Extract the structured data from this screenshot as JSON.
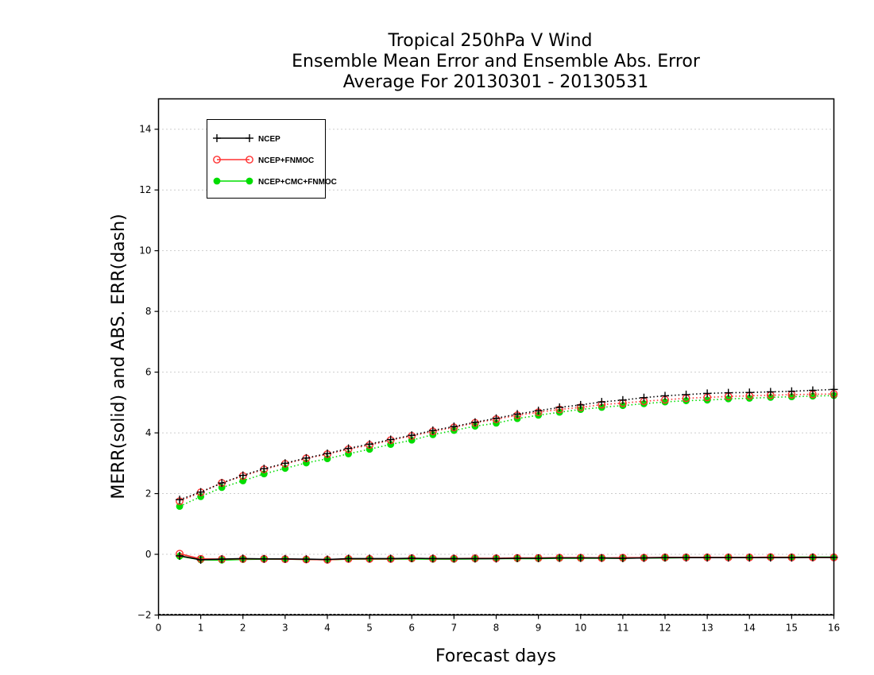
{
  "chart_data": {
    "type": "line",
    "title": [
      "Tropical 250hPa V Wind",
      "Ensemble Mean Error and Ensemble Abs. Error",
      "Average For 20130301 - 20130531"
    ],
    "xlabel": "Forecast days",
    "ylabel": "MERR(solid) and ABS. ERR(dash)",
    "xlim": [
      0,
      16
    ],
    "ylim": [
      -2,
      15
    ],
    "xticks": [
      0,
      1,
      2,
      3,
      4,
      5,
      6,
      7,
      8,
      9,
      10,
      11,
      12,
      13,
      14,
      15,
      16
    ],
    "yticks": [
      -2,
      0,
      2,
      4,
      6,
      8,
      10,
      12,
      14
    ],
    "grid": "dotted horizontal",
    "legend_position": "top-left",
    "x": [
      0.5,
      1,
      1.5,
      2,
      2.5,
      3,
      3.5,
      4,
      4.5,
      5,
      5.5,
      6,
      6.5,
      7,
      7.5,
      8,
      8.5,
      9,
      9.5,
      10,
      10.5,
      11,
      11.5,
      12,
      12.5,
      13,
      13.5,
      14,
      14.5,
      15,
      15.5,
      16
    ],
    "series": [
      {
        "name": "NCEP",
        "color": "#000000",
        "marker": "plus",
        "solid": [
          -0.05,
          -0.18,
          -0.16,
          -0.14,
          -0.15,
          -0.15,
          -0.16,
          -0.17,
          -0.14,
          -0.14,
          -0.14,
          -0.13,
          -0.14,
          -0.14,
          -0.14,
          -0.14,
          -0.13,
          -0.13,
          -0.12,
          -0.12,
          -0.12,
          -0.13,
          -0.12,
          -0.11,
          -0.11,
          -0.11,
          -0.11,
          -0.11,
          -0.11,
          -0.11,
          -0.1,
          -0.1
        ],
        "dash": [
          1.8,
          2.05,
          2.35,
          2.6,
          2.82,
          3.0,
          3.17,
          3.32,
          3.49,
          3.63,
          3.78,
          3.92,
          4.08,
          4.21,
          4.35,
          4.48,
          4.62,
          4.73,
          4.84,
          4.92,
          5.02,
          5.08,
          5.16,
          5.22,
          5.26,
          5.3,
          5.32,
          5.33,
          5.35,
          5.37,
          5.4,
          5.43
        ]
      },
      {
        "name": "NCEP+FNMOC",
        "color": "#ff3030",
        "marker": "open-circle",
        "solid": [
          0.02,
          -0.15,
          -0.16,
          -0.15,
          -0.15,
          -0.16,
          -0.17,
          -0.18,
          -0.15,
          -0.15,
          -0.15,
          -0.13,
          -0.14,
          -0.14,
          -0.13,
          -0.13,
          -0.12,
          -0.12,
          -0.11,
          -0.11,
          -0.12,
          -0.11,
          -0.11,
          -0.1,
          -0.1,
          -0.1,
          -0.1,
          -0.1,
          -0.09,
          -0.1,
          -0.1,
          -0.1
        ],
        "dash": [
          1.75,
          2.04,
          2.35,
          2.58,
          2.8,
          2.98,
          3.16,
          3.3,
          3.46,
          3.6,
          3.76,
          3.9,
          4.05,
          4.18,
          4.33,
          4.45,
          4.58,
          4.68,
          4.77,
          4.84,
          4.93,
          4.98,
          5.04,
          5.09,
          5.14,
          5.17,
          5.2,
          5.22,
          5.24,
          5.26,
          5.27,
          5.28
        ]
      },
      {
        "name": "NCEP+CMC+FNMOC",
        "color": "#00dd00",
        "marker": "filled-circle",
        "solid": [
          -0.06,
          -0.18,
          -0.19,
          -0.17,
          -0.16,
          -0.16,
          -0.17,
          -0.18,
          -0.16,
          -0.16,
          -0.16,
          -0.15,
          -0.16,
          -0.16,
          -0.15,
          -0.14,
          -0.14,
          -0.14,
          -0.13,
          -0.13,
          -0.13,
          -0.13,
          -0.12,
          -0.12,
          -0.11,
          -0.11,
          -0.11,
          -0.1,
          -0.1,
          -0.09,
          -0.09,
          -0.09
        ],
        "dash": [
          1.58,
          1.9,
          2.2,
          2.42,
          2.65,
          2.83,
          3.01,
          3.15,
          3.31,
          3.46,
          3.62,
          3.76,
          3.94,
          4.08,
          4.22,
          4.32,
          4.47,
          4.58,
          4.68,
          4.77,
          4.84,
          4.9,
          4.96,
          5.02,
          5.06,
          5.08,
          5.12,
          5.14,
          5.17,
          5.19,
          5.21,
          5.23
        ]
      }
    ]
  }
}
